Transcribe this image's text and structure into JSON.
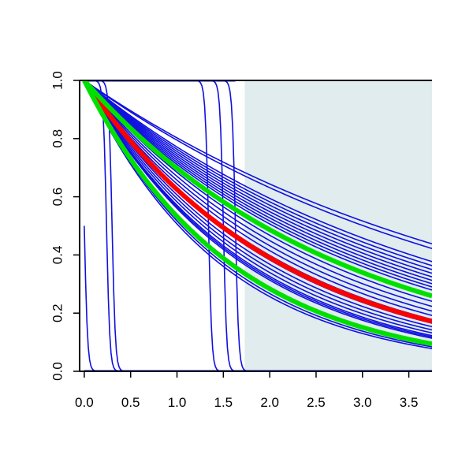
{
  "chart_data": {
    "type": "line",
    "title": "",
    "xlabel": "",
    "ylabel": "",
    "xlim": [
      -0.05,
      3.75
    ],
    "ylim": [
      0.0,
      1.0
    ],
    "x_ticks": [
      0.0,
      0.5,
      1.0,
      1.5,
      2.0,
      2.5,
      3.0,
      3.5
    ],
    "x_tick_labels": [
      "0.0",
      "0.5",
      "1.0",
      "1.5",
      "2.0",
      "2.5",
      "3.0",
      "3.5"
    ],
    "y_ticks": [
      0.0,
      0.2,
      0.4,
      0.6,
      0.8,
      1.0
    ],
    "y_tick_labels": [
      "0.0",
      "0.2",
      "0.4",
      "0.6",
      "0.8",
      "1.0"
    ],
    "grid": false,
    "shaded_region": {
      "x_from": 1.73,
      "x_to": 3.75,
      "color": "#e0eced"
    },
    "colors": {
      "blue": "#1010e0",
      "red": "#ff0000",
      "green": "#00e000"
    },
    "blue_exponential_rates": [
      0.22,
      0.23,
      0.26,
      0.27,
      0.28,
      0.29,
      0.3,
      0.31,
      0.32,
      0.33,
      0.34,
      0.36,
      0.38,
      0.4,
      0.42,
      0.44,
      0.46,
      0.48,
      0.5,
      0.52,
      0.54,
      0.56,
      0.57,
      0.58,
      0.62,
      0.66,
      0.68
    ],
    "blue_step_midpoints": [
      0.0,
      0.24,
      0.3,
      1.34,
      1.5,
      1.63
    ],
    "series": [
      {
        "color": "red",
        "kind": "exp",
        "rate": 0.47
      },
      {
        "color": "green",
        "kind": "exp",
        "rate": 0.36
      },
      {
        "color": "green",
        "kind": "exp",
        "rate": 0.63
      }
    ]
  }
}
